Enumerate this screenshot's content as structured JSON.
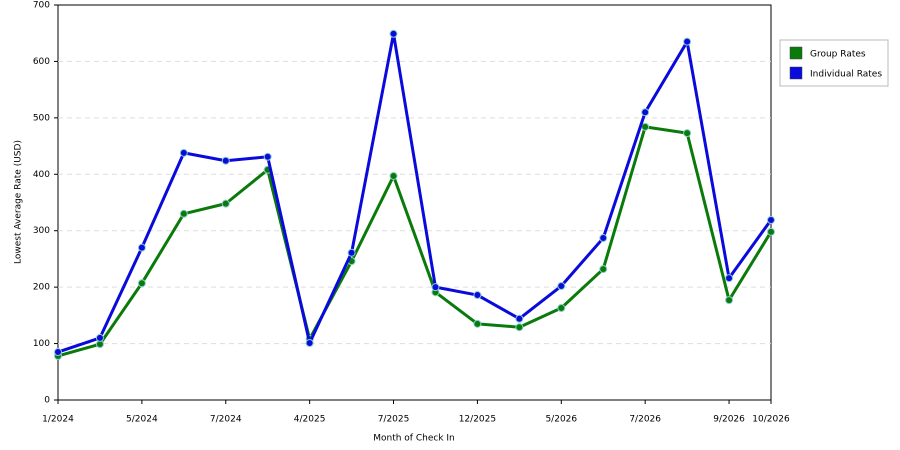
{
  "chart_data": {
    "type": "line",
    "x_label": "Month of Check In",
    "y_label": "Lowest Average Rate (USD)",
    "categories": [
      "1/2024",
      null,
      "5/2024",
      null,
      "7/2024",
      null,
      "4/2025",
      null,
      "7/2025",
      null,
      "12/2025",
      null,
      "5/2026",
      null,
      "7/2026",
      null,
      "9/2026",
      "10/2026"
    ],
    "series": [
      {
        "name": "Group Rates",
        "color": "#0a7a0a",
        "values": [
          78,
          99,
          207,
          330,
          348,
          408,
          108,
          246,
          397,
          191,
          135,
          129,
          163,
          232,
          484,
          473,
          177,
          298
        ]
      },
      {
        "name": "Individual Rates",
        "color": "#0a0adc",
        "values": [
          85,
          110,
          270,
          438,
          424,
          431,
          101,
          261,
          649,
          200,
          186,
          144,
          202,
          287,
          510,
          635,
          216,
          319
        ]
      }
    ],
    "ylim": [
      0,
      700
    ],
    "yticks": [
      0,
      100,
      200,
      300,
      400,
      500,
      600,
      700
    ],
    "grid": true,
    "legend": "right"
  }
}
